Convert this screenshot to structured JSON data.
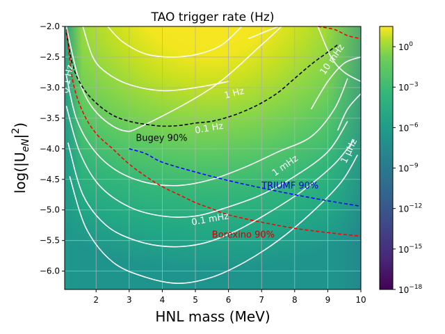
{
  "chart_data": {
    "type": "heatmap",
    "title": "TAO trigger rate (Hz)",
    "xlabel": "HNL mass (MeV)",
    "ylabel": "log(|U",
    "ylabel_sub": "eN",
    "ylabel_tail": "|",
    "ylabel_sup": "2",
    "ylabel_close": ")",
    "xlim": [
      1.05,
      10
    ],
    "ylim": [
      -6.3,
      -2.0
    ],
    "xticks": [
      {
        "v": 2,
        "label": "2"
      },
      {
        "v": 3,
        "label": "3"
      },
      {
        "v": 4,
        "label": "4"
      },
      {
        "v": 5,
        "label": "5"
      },
      {
        "v": 6,
        "label": "6"
      },
      {
        "v": 7,
        "label": "7"
      },
      {
        "v": 8,
        "label": "8"
      },
      {
        "v": 9,
        "label": "9"
      },
      {
        "v": 10,
        "label": "10"
      }
    ],
    "yticks": [
      {
        "v": -2.0,
        "label": "−2.0"
      },
      {
        "v": -2.5,
        "label": "−2.5"
      },
      {
        "v": -3.0,
        "label": "−3.0"
      },
      {
        "v": -3.5,
        "label": "−3.5"
      },
      {
        "v": -4.0,
        "label": "−4.0"
      },
      {
        "v": -4.5,
        "label": "−4.5"
      },
      {
        "v": -5.0,
        "label": "−5.0"
      },
      {
        "v": -5.5,
        "label": "−5.5"
      },
      {
        "v": -6.0,
        "label": "−6.0"
      }
    ],
    "grid": true,
    "colorbar": {
      "scale": "log",
      "range_log10": [
        -18,
        1.5
      ],
      "colormap": "viridis",
      "ticks": [
        {
          "exp": 0,
          "base": "10",
          "sup": "0"
        },
        {
          "exp": -3,
          "base": "10",
          "sup": "−3"
        },
        {
          "exp": -6,
          "base": "10",
          "sup": "−6"
        },
        {
          "exp": -9,
          "base": "10",
          "sup": "−9"
        },
        {
          "exp": -12,
          "base": "10",
          "sup": "−12"
        },
        {
          "exp": -15,
          "base": "10",
          "sup": "−15"
        },
        {
          "exp": -18,
          "base": "10",
          "sup": "−18"
        }
      ]
    },
    "contours": [
      {
        "label": "10 mHz",
        "color": "#ffffff",
        "points": [
          [
            1.1,
            -2.0
          ],
          [
            1.5,
            -2.9
          ],
          [
            2.0,
            -3.4
          ],
          [
            2.8,
            -3.7
          ],
          [
            3.5,
            -3.6
          ],
          [
            5.5,
            -3.0
          ],
          [
            7.0,
            -2.3
          ],
          [
            7.6,
            -2.0
          ]
        ]
      },
      {
        "label": "1 Hz",
        "color": "#ffffff",
        "points": [
          [
            1.6,
            -2.0
          ],
          [
            1.9,
            -2.5
          ],
          [
            2.3,
            -2.75
          ],
          [
            3.0,
            -2.95
          ],
          [
            4.0,
            -3.05
          ],
          [
            5.0,
            -3.0
          ],
          [
            6.0,
            -2.9
          ]
        ]
      },
      {
        "label": "1 Hz",
        "color": "#ffffff",
        "points": [
          [
            6.6,
            -2.2
          ],
          [
            7.5,
            -2.0
          ]
        ]
      },
      {
        "label": "0.1 Hz",
        "color": "#ffffff",
        "points": [
          [
            2.35,
            -2.0
          ],
          [
            2.8,
            -2.25
          ],
          [
            3.5,
            -2.45
          ],
          [
            4.3,
            -2.5
          ],
          [
            5.1,
            -2.45
          ],
          [
            5.8,
            -2.3
          ],
          [
            6.4,
            -2.0
          ]
        ]
      },
      {
        "label": "1 mHz",
        "color": "#ffffff",
        "points": [
          [
            1.1,
            -2.8
          ],
          [
            1.4,
            -3.5
          ],
          [
            1.9,
            -4.0
          ],
          [
            2.6,
            -4.35
          ],
          [
            3.5,
            -4.55
          ],
          [
            4.5,
            -4.6
          ],
          [
            5.5,
            -4.5
          ],
          [
            6.5,
            -4.3
          ],
          [
            7.5,
            -4.05
          ],
          [
            8.5,
            -3.8
          ],
          [
            9.2,
            -3.35
          ],
          [
            9.6,
            -2.85
          ]
        ]
      },
      {
        "label": "",
        "color": "#ffffff",
        "points": [
          [
            1.1,
            -3.3
          ],
          [
            1.5,
            -4.05
          ],
          [
            2.1,
            -4.6
          ],
          [
            3.0,
            -4.95
          ],
          [
            4.0,
            -5.1
          ],
          [
            5.0,
            -5.1
          ],
          [
            6.0,
            -4.95
          ],
          [
            7.0,
            -4.75
          ],
          [
            8.0,
            -4.45
          ],
          [
            9.0,
            -4.05
          ],
          [
            9.6,
            -3.55
          ]
        ]
      },
      {
        "label": "0.1 mHz",
        "color": "#ffffff",
        "points": [
          [
            1.15,
            -3.9
          ],
          [
            1.6,
            -4.75
          ],
          [
            2.3,
            -5.25
          ],
          [
            3.2,
            -5.5
          ],
          [
            4.2,
            -5.6
          ],
          [
            5.2,
            -5.55
          ],
          [
            6.2,
            -5.35
          ],
          [
            7.2,
            -5.05
          ],
          [
            8.2,
            -4.7
          ],
          [
            9.2,
            -4.25
          ],
          [
            9.8,
            -3.85
          ]
        ]
      },
      {
        "label": "1 μHz",
        "color": "#ffffff",
        "points": [
          [
            1.2,
            -4.45
          ],
          [
            1.7,
            -5.3
          ],
          [
            2.5,
            -5.85
          ],
          [
            3.5,
            -6.1
          ],
          [
            4.5,
            -6.2
          ],
          [
            5.5,
            -6.1
          ],
          [
            6.5,
            -5.85
          ],
          [
            7.5,
            -5.5
          ],
          [
            8.5,
            -5.05
          ],
          [
            9.4,
            -4.55
          ],
          [
            9.9,
            -4.1
          ]
        ]
      },
      {
        "label": "",
        "color": "#ffffff",
        "points": [
          [
            8.7,
            -2.0
          ],
          [
            9.1,
            -2.5
          ],
          [
            9.5,
            -2.75
          ],
          [
            10.0,
            -2.9
          ]
        ]
      },
      {
        "label": "",
        "color": "#ffffff",
        "points": [
          [
            8.5,
            -3.35
          ],
          [
            9.0,
            -2.9
          ],
          [
            9.5,
            -2.6
          ],
          [
            10.0,
            -2.5
          ]
        ]
      },
      {
        "label": "",
        "color": "#ffffff",
        "points": [
          [
            9.3,
            -3.7
          ],
          [
            9.6,
            -3.35
          ],
          [
            10.0,
            -3.1
          ]
        ]
      }
    ],
    "limits": [
      {
        "name": "Bugey 90%",
        "color": "#000000",
        "points": [
          [
            1.1,
            -2.1
          ],
          [
            1.3,
            -2.65
          ],
          [
            1.6,
            -3.0
          ],
          [
            2.0,
            -3.25
          ],
          [
            2.5,
            -3.45
          ],
          [
            3.0,
            -3.55
          ],
          [
            3.5,
            -3.6
          ],
          [
            4.0,
            -3.63
          ],
          [
            4.5,
            -3.62
          ],
          [
            5.0,
            -3.58
          ],
          [
            5.5,
            -3.55
          ],
          [
            6.0,
            -3.48
          ],
          [
            6.5,
            -3.38
          ],
          [
            7.0,
            -3.25
          ],
          [
            7.5,
            -3.08
          ],
          [
            8.0,
            -2.85
          ],
          [
            8.5,
            -2.62
          ],
          [
            9.0,
            -2.42
          ],
          [
            9.3,
            -2.3
          ]
        ]
      },
      {
        "name": "TRIUMF 90%",
        "color": "#0000ff",
        "points": [
          [
            3.0,
            -4.0
          ],
          [
            3.5,
            -4.08
          ],
          [
            4.0,
            -4.22
          ],
          [
            5.0,
            -4.38
          ],
          [
            6.0,
            -4.52
          ],
          [
            7.0,
            -4.64
          ],
          [
            8.0,
            -4.75
          ],
          [
            9.0,
            -4.85
          ],
          [
            10.0,
            -4.94
          ]
        ]
      },
      {
        "name": "Borexino 90%",
        "color": "#ff0000",
        "points": [
          [
            1.1,
            -2.05
          ],
          [
            1.3,
            -2.9
          ],
          [
            1.6,
            -3.4
          ],
          [
            2.0,
            -3.75
          ],
          [
            2.5,
            -4.0
          ],
          [
            3.0,
            -4.25
          ],
          [
            3.5,
            -4.45
          ],
          [
            4.0,
            -4.62
          ],
          [
            4.5,
            -4.75
          ],
          [
            5.0,
            -4.88
          ],
          [
            5.5,
            -4.98
          ],
          [
            6.0,
            -5.08
          ],
          [
            7.0,
            -5.2
          ],
          [
            8.0,
            -5.3
          ],
          [
            9.0,
            -5.37
          ],
          [
            10.0,
            -5.43
          ]
        ]
      },
      {
        "name": "",
        "color": "#ff0000",
        "points": [
          [
            8.7,
            -2.0
          ],
          [
            9.2,
            -2.05
          ],
          [
            9.6,
            -2.15
          ],
          [
            10.0,
            -2.2
          ]
        ]
      }
    ],
    "annotations": [
      {
        "text": "Bugey 90%",
        "x": 3.2,
        "y": -3.87,
        "color": "#000000",
        "rotate": 0
      },
      {
        "text": "TRIUMF 90%",
        "x": 7.0,
        "y": -4.65,
        "color": "#0000cc",
        "rotate": 0
      },
      {
        "text": "Borexino 90%",
        "x": 5.5,
        "y": -5.45,
        "color": "#cc0000",
        "rotate": 0
      },
      {
        "text": "1 Hz",
        "x": 5.9,
        "y": -3.18,
        "color": "#ffffff",
        "rotate": -15
      },
      {
        "text": "0.1 Hz",
        "x": 5.0,
        "y": -3.75,
        "color": "#ffffff",
        "rotate": -10
      },
      {
        "text": "1 mHz",
        "x": 7.4,
        "y": -4.45,
        "color": "#ffffff",
        "rotate": -35
      },
      {
        "text": "0.1 mHz",
        "x": 4.9,
        "y": -5.25,
        "color": "#ffffff",
        "rotate": -10
      },
      {
        "text": "10 mHz",
        "x": 8.9,
        "y": -2.8,
        "color": "#ffffff",
        "rotate": -55
      },
      {
        "text": "1 μHz",
        "x": 9.55,
        "y": -4.25,
        "color": "#ffffff",
        "rotate": -65
      },
      {
        "text": "0.1 Hz",
        "x": 1.15,
        "y": -3.1,
        "color": "#ffffff",
        "rotate": -80
      }
    ]
  }
}
